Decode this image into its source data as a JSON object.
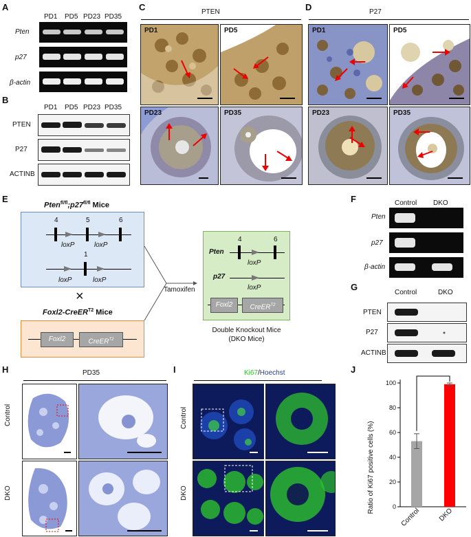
{
  "panels": {
    "A": {
      "letter": "A",
      "lanes": [
        "PD1",
        "PD5",
        "PD23",
        "PD35"
      ],
      "rows": [
        "Pten",
        "p27",
        "β-actin"
      ]
    },
    "B": {
      "letter": "B",
      "lanes": [
        "PD1",
        "PD5",
        "PD23",
        "PD35"
      ],
      "rows": [
        "PTEN",
        "P27",
        "ACTINB"
      ]
    },
    "C": {
      "letter": "C",
      "title": "PTEN",
      "images": [
        "PD1",
        "PD5",
        "PD23",
        "PD35"
      ]
    },
    "D": {
      "letter": "D",
      "title": "P27",
      "images": [
        "PD1",
        "PD5",
        "PD23",
        "PD35"
      ]
    },
    "E": {
      "letter": "E",
      "mouse1_title": "Pten",
      "mouse1_sup": "fl/fl",
      "mouse1_mid": ";p27",
      "mouse1_sup2": "fl/fl",
      "mouse1_suffix": " Mice",
      "exons_top": [
        "4",
        "5",
        "6"
      ],
      "exon_p27": "1",
      "loxp": "loxP",
      "cross": "×",
      "mouse2_title": "Foxl2-CreER",
      "mouse2_sup": "T2",
      "mouse2_suffix": " Mice",
      "foxl2": "Foxl2",
      "creer": "CreER",
      "creer_sup": "T2",
      "treatment": "Tamoxifen",
      "dko_gene1": "Pten",
      "dko_gene2": "p27",
      "dko_exons": [
        "4",
        "6"
      ],
      "dko_caption_line1": "Double Knockout Mice",
      "dko_caption_line2": "(DKO Mice)"
    },
    "F": {
      "letter": "F",
      "lanes": [
        "Control",
        "DKO"
      ],
      "rows": [
        "Pten",
        "p27",
        "β-actin"
      ]
    },
    "G": {
      "letter": "G",
      "lanes": [
        "Control",
        "DKO"
      ],
      "rows": [
        "PTEN",
        "P27",
        "ACTINB"
      ]
    },
    "H": {
      "letter": "H",
      "title": "PD35",
      "rows": [
        "Control",
        "DKO"
      ]
    },
    "I": {
      "letter": "I",
      "title_ki67": "Ki67",
      "title_sep": "/",
      "title_hoechst": "Hoechst",
      "rows": [
        "Control",
        "DKO"
      ]
    },
    "J": {
      "letter": "J"
    }
  },
  "colors": {
    "ihc_brown": "#9a7433",
    "hematoxylin": "#7d8fcf",
    "ki67": "#3fd13f",
    "hoechst": "#1e3b9a",
    "control_bar": "#a6a6a6",
    "dko_bar": "#ff0000",
    "box_blue": "#dce8f6",
    "box_green": "#d6ecc6",
    "box_orange": "#fce6d2"
  },
  "chart_data": {
    "type": "bar",
    "categories": [
      "Control",
      "DKO"
    ],
    "values": [
      53,
      99
    ],
    "errors": [
      6,
      1
    ],
    "ylabel": "Ratio of Ki67 positive cells (%)",
    "ylim": [
      0,
      100
    ],
    "yticks": [
      0,
      20,
      40,
      60,
      80,
      100
    ],
    "significance": "**",
    "bar_colors": [
      "#a6a6a6",
      "#ff0000"
    ]
  }
}
